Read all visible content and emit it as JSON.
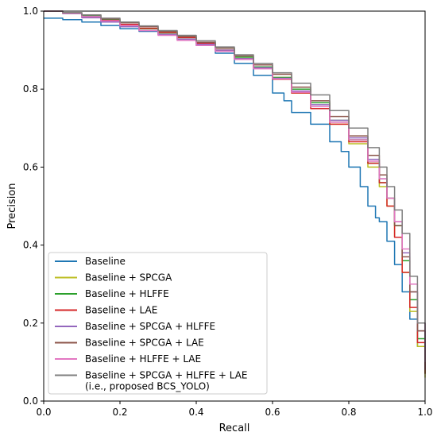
{
  "chart_data": {
    "type": "line",
    "title": "",
    "xlabel": "Recall",
    "ylabel": "Precision",
    "xlim": [
      0.0,
      1.0
    ],
    "ylim": [
      0.0,
      1.0
    ],
    "xticks": [
      "0.0",
      "0.2",
      "0.4",
      "0.6",
      "0.8",
      "1.0"
    ],
    "yticks": [
      "0.0",
      "0.2",
      "0.4",
      "0.6",
      "0.8",
      "1.0"
    ],
    "grid": false,
    "legend_position": "lower-left",
    "series": [
      {
        "name": "Baseline",
        "color": "#1f77b4",
        "points": [
          [
            0.0,
            0.982
          ],
          [
            0.05,
            0.978
          ],
          [
            0.1,
            0.972
          ],
          [
            0.15,
            0.963
          ],
          [
            0.2,
            0.955
          ],
          [
            0.25,
            0.948
          ],
          [
            0.3,
            0.94
          ],
          [
            0.35,
            0.928
          ],
          [
            0.4,
            0.912
          ],
          [
            0.45,
            0.892
          ],
          [
            0.5,
            0.866
          ],
          [
            0.55,
            0.835
          ],
          [
            0.6,
            0.79
          ],
          [
            0.63,
            0.77
          ],
          [
            0.65,
            0.74
          ],
          [
            0.7,
            0.71
          ],
          [
            0.75,
            0.665
          ],
          [
            0.78,
            0.64
          ],
          [
            0.8,
            0.6
          ],
          [
            0.83,
            0.55
          ],
          [
            0.85,
            0.5
          ],
          [
            0.87,
            0.47
          ],
          [
            0.88,
            0.46
          ],
          [
            0.9,
            0.41
          ],
          [
            0.92,
            0.35
          ],
          [
            0.94,
            0.28
          ],
          [
            0.96,
            0.21
          ],
          [
            0.98,
            0.14
          ],
          [
            1.0,
            0.1
          ]
        ]
      },
      {
        "name": "Baseline + SPCGA",
        "color": "#bcbd22",
        "points": [
          [
            0.0,
            1.0
          ],
          [
            0.05,
            0.995
          ],
          [
            0.1,
            0.985
          ],
          [
            0.15,
            0.975
          ],
          [
            0.2,
            0.965
          ],
          [
            0.25,
            0.955
          ],
          [
            0.3,
            0.945
          ],
          [
            0.35,
            0.932
          ],
          [
            0.4,
            0.918
          ],
          [
            0.45,
            0.9
          ],
          [
            0.5,
            0.878
          ],
          [
            0.55,
            0.855
          ],
          [
            0.6,
            0.83
          ],
          [
            0.65,
            0.79
          ],
          [
            0.7,
            0.755
          ],
          [
            0.75,
            0.71
          ],
          [
            0.8,
            0.66
          ],
          [
            0.85,
            0.6
          ],
          [
            0.88,
            0.55
          ],
          [
            0.9,
            0.5
          ],
          [
            0.92,
            0.42
          ],
          [
            0.94,
            0.33
          ],
          [
            0.96,
            0.23
          ],
          [
            0.98,
            0.14
          ],
          [
            1.0,
            0.06
          ]
        ]
      },
      {
        "name": "Baseline + HLFFE",
        "color": "#2ca02c",
        "points": [
          [
            0.0,
            1.0
          ],
          [
            0.05,
            0.996
          ],
          [
            0.1,
            0.988
          ],
          [
            0.15,
            0.978
          ],
          [
            0.2,
            0.966
          ],
          [
            0.25,
            0.955
          ],
          [
            0.3,
            0.944
          ],
          [
            0.35,
            0.933
          ],
          [
            0.4,
            0.92
          ],
          [
            0.45,
            0.905
          ],
          [
            0.5,
            0.882
          ],
          [
            0.55,
            0.857
          ],
          [
            0.6,
            0.83
          ],
          [
            0.65,
            0.8
          ],
          [
            0.7,
            0.765
          ],
          [
            0.75,
            0.72
          ],
          [
            0.8,
            0.67
          ],
          [
            0.85,
            0.61
          ],
          [
            0.88,
            0.56
          ],
          [
            0.9,
            0.52
          ],
          [
            0.92,
            0.45
          ],
          [
            0.94,
            0.36
          ],
          [
            0.96,
            0.26
          ],
          [
            0.98,
            0.16
          ],
          [
            1.0,
            0.07
          ]
        ]
      },
      {
        "name": "Baseline + LAE",
        "color": "#d62728",
        "points": [
          [
            0.0,
            1.0
          ],
          [
            0.05,
            0.994
          ],
          [
            0.1,
            0.985
          ],
          [
            0.15,
            0.976
          ],
          [
            0.2,
            0.966
          ],
          [
            0.25,
            0.956
          ],
          [
            0.3,
            0.945
          ],
          [
            0.35,
            0.932
          ],
          [
            0.4,
            0.918
          ],
          [
            0.45,
            0.9
          ],
          [
            0.5,
            0.878
          ],
          [
            0.55,
            0.854
          ],
          [
            0.6,
            0.825
          ],
          [
            0.65,
            0.79
          ],
          [
            0.7,
            0.75
          ],
          [
            0.75,
            0.71
          ],
          [
            0.8,
            0.665
          ],
          [
            0.85,
            0.61
          ],
          [
            0.88,
            0.56
          ],
          [
            0.9,
            0.5
          ],
          [
            0.92,
            0.42
          ],
          [
            0.94,
            0.33
          ],
          [
            0.96,
            0.24
          ],
          [
            0.98,
            0.15
          ],
          [
            1.0,
            0.07
          ]
        ]
      },
      {
        "name": "Baseline + SPCGA + HLFFE",
        "color": "#9467bd",
        "points": [
          [
            0.0,
            1.0
          ],
          [
            0.05,
            0.994
          ],
          [
            0.1,
            0.983
          ],
          [
            0.15,
            0.972
          ],
          [
            0.2,
            0.96
          ],
          [
            0.25,
            0.95
          ],
          [
            0.3,
            0.94
          ],
          [
            0.35,
            0.928
          ],
          [
            0.4,
            0.915
          ],
          [
            0.45,
            0.9
          ],
          [
            0.5,
            0.878
          ],
          [
            0.55,
            0.855
          ],
          [
            0.6,
            0.828
          ],
          [
            0.65,
            0.795
          ],
          [
            0.7,
            0.76
          ],
          [
            0.75,
            0.72
          ],
          [
            0.8,
            0.675
          ],
          [
            0.85,
            0.62
          ],
          [
            0.88,
            0.57
          ],
          [
            0.9,
            0.52
          ],
          [
            0.92,
            0.46
          ],
          [
            0.94,
            0.38
          ],
          [
            0.96,
            0.28
          ],
          [
            0.98,
            0.18
          ],
          [
            1.0,
            0.08
          ]
        ]
      },
      {
        "name": "Baseline + SPCGA + LAE",
        "color": "#8c564b",
        "points": [
          [
            0.0,
            1.0
          ],
          [
            0.05,
            0.996
          ],
          [
            0.1,
            0.99
          ],
          [
            0.15,
            0.98
          ],
          [
            0.2,
            0.97
          ],
          [
            0.25,
            0.96
          ],
          [
            0.3,
            0.948
          ],
          [
            0.35,
            0.935
          ],
          [
            0.4,
            0.92
          ],
          [
            0.45,
            0.905
          ],
          [
            0.5,
            0.885
          ],
          [
            0.55,
            0.862
          ],
          [
            0.6,
            0.838
          ],
          [
            0.65,
            0.805
          ],
          [
            0.7,
            0.77
          ],
          [
            0.75,
            0.73
          ],
          [
            0.8,
            0.68
          ],
          [
            0.85,
            0.63
          ],
          [
            0.88,
            0.58
          ],
          [
            0.9,
            0.52
          ],
          [
            0.92,
            0.45
          ],
          [
            0.94,
            0.37
          ],
          [
            0.96,
            0.28
          ],
          [
            0.98,
            0.18
          ],
          [
            1.0,
            0.08
          ]
        ]
      },
      {
        "name": "Baseline + HLFFE + LAE",
        "color": "#e377c2",
        "points": [
          [
            0.0,
            1.0
          ],
          [
            0.05,
            0.995
          ],
          [
            0.1,
            0.986
          ],
          [
            0.15,
            0.975
          ],
          [
            0.2,
            0.963
          ],
          [
            0.25,
            0.95
          ],
          [
            0.3,
            0.938
          ],
          [
            0.35,
            0.925
          ],
          [
            0.4,
            0.912
          ],
          [
            0.45,
            0.897
          ],
          [
            0.5,
            0.876
          ],
          [
            0.55,
            0.852
          ],
          [
            0.6,
            0.826
          ],
          [
            0.65,
            0.792
          ],
          [
            0.7,
            0.755
          ],
          [
            0.75,
            0.715
          ],
          [
            0.8,
            0.67
          ],
          [
            0.85,
            0.615
          ],
          [
            0.88,
            0.57
          ],
          [
            0.9,
            0.52
          ],
          [
            0.92,
            0.46
          ],
          [
            0.94,
            0.39
          ],
          [
            0.96,
            0.3
          ],
          [
            0.98,
            0.2
          ],
          [
            1.0,
            0.1
          ]
        ]
      },
      {
        "name": "Baseline + SPCGA + HLFFE + LAE\n(i.e., proposed BCS_YOLO)",
        "color": "#7f7f7f",
        "points": [
          [
            0.0,
            1.0
          ],
          [
            0.05,
            0.996
          ],
          [
            0.1,
            0.99
          ],
          [
            0.15,
            0.982
          ],
          [
            0.2,
            0.972
          ],
          [
            0.25,
            0.962
          ],
          [
            0.3,
            0.95
          ],
          [
            0.35,
            0.938
          ],
          [
            0.4,
            0.924
          ],
          [
            0.45,
            0.908
          ],
          [
            0.5,
            0.888
          ],
          [
            0.55,
            0.866
          ],
          [
            0.6,
            0.842
          ],
          [
            0.65,
            0.815
          ],
          [
            0.7,
            0.785
          ],
          [
            0.75,
            0.745
          ],
          [
            0.8,
            0.7
          ],
          [
            0.85,
            0.65
          ],
          [
            0.88,
            0.6
          ],
          [
            0.9,
            0.55
          ],
          [
            0.92,
            0.49
          ],
          [
            0.94,
            0.43
          ],
          [
            0.96,
            0.32
          ],
          [
            0.98,
            0.2
          ],
          [
            1.0,
            0.1
          ]
        ]
      }
    ]
  }
}
